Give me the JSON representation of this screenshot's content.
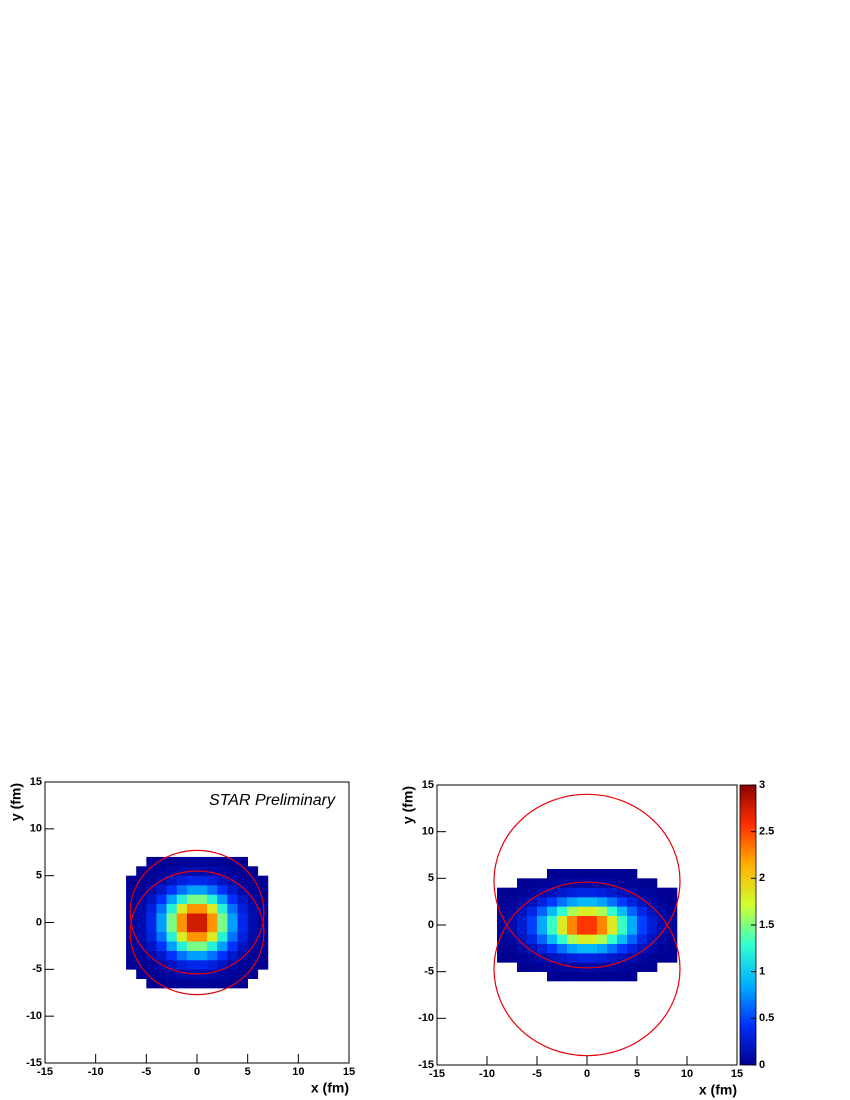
{
  "chart_data": [
    {
      "type": "heatmap",
      "annotation": "STAR Preliminary",
      "x_label": "x (fm)",
      "y_label": "y (fm)",
      "xlim": [
        -15,
        15
      ],
      "ylim": [
        -15,
        15
      ],
      "xticks": [
        -15,
        -10,
        -5,
        0,
        5,
        10,
        15
      ],
      "yticks": [
        -15,
        -10,
        -5,
        0,
        5,
        10,
        15
      ],
      "zlim": [
        0,
        3
      ],
      "colormap": [
        "#00008f",
        "#0030ff",
        "#00b0ff",
        "#30ffd0",
        "#d0ff30",
        "#ffb000",
        "#ff3000",
        "#8f0000"
      ],
      "x_bins": [
        -7,
        -6,
        -5,
        -4,
        -3,
        -2,
        -1,
        0,
        1,
        2,
        3,
        4,
        5,
        6,
        7
      ],
      "y_bins": [
        -7,
        -6,
        -5,
        -4,
        -3,
        -2,
        -1,
        0,
        1,
        2,
        3,
        4,
        5,
        6,
        7
      ],
      "z": [
        [
          0,
          0,
          0.01,
          0.01,
          0.02,
          0.03,
          0.04,
          0.04,
          0.03,
          0.02,
          0.01,
          0.01,
          0,
          0
        ],
        [
          0,
          0.01,
          0.02,
          0.04,
          0.07,
          0.1,
          0.12,
          0.12,
          0.1,
          0.07,
          0.04,
          0.02,
          0.01,
          0
        ],
        [
          0.01,
          0.02,
          0.04,
          0.1,
          0.19,
          0.29,
          0.35,
          0.35,
          0.29,
          0.19,
          0.1,
          0.04,
          0.02,
          0.01
        ],
        [
          0.01,
          0.04,
          0.1,
          0.23,
          0.43,
          0.65,
          0.8,
          0.8,
          0.65,
          0.43,
          0.23,
          0.1,
          0.04,
          0.01
        ],
        [
          0.02,
          0.07,
          0.19,
          0.43,
          0.8,
          1.21,
          1.48,
          1.48,
          1.21,
          0.8,
          0.43,
          0.19,
          0.07,
          0.02
        ],
        [
          0.03,
          0.1,
          0.29,
          0.65,
          1.21,
          1.82,
          2.24,
          2.24,
          1.82,
          1.21,
          0.65,
          0.29,
          0.1,
          0.03
        ],
        [
          0.04,
          0.12,
          0.35,
          0.8,
          1.48,
          2.24,
          2.75,
          2.75,
          2.24,
          1.48,
          0.8,
          0.35,
          0.12,
          0.04
        ],
        [
          0.04,
          0.12,
          0.35,
          0.8,
          1.48,
          2.24,
          2.75,
          2.75,
          2.24,
          1.48,
          0.8,
          0.35,
          0.12,
          0.04
        ],
        [
          0.03,
          0.1,
          0.29,
          0.65,
          1.21,
          1.82,
          2.24,
          2.24,
          1.82,
          1.21,
          0.65,
          0.29,
          0.1,
          0.03
        ],
        [
          0.02,
          0.07,
          0.19,
          0.43,
          0.8,
          1.21,
          1.48,
          1.48,
          1.21,
          0.8,
          0.43,
          0.19,
          0.07,
          0.02
        ],
        [
          0.01,
          0.04,
          0.1,
          0.23,
          0.43,
          0.65,
          0.8,
          0.8,
          0.65,
          0.43,
          0.23,
          0.1,
          0.04,
          0.01
        ],
        [
          0.01,
          0.02,
          0.04,
          0.1,
          0.19,
          0.29,
          0.35,
          0.35,
          0.29,
          0.19,
          0.1,
          0.04,
          0.02,
          0.01
        ],
        [
          0,
          0.01,
          0.02,
          0.04,
          0.07,
          0.1,
          0.12,
          0.12,
          0.1,
          0.07,
          0.04,
          0.02,
          0.01,
          0
        ],
        [
          0,
          0,
          0.01,
          0.01,
          0.02,
          0.03,
          0.04,
          0.04,
          0.03,
          0.02,
          0.01,
          0.01,
          0,
          0
        ]
      ],
      "circles": [
        {
          "cx": 0,
          "cy": 1.1,
          "r": 6.6
        },
        {
          "cx": 0,
          "cy": -1.1,
          "r": 6.6
        }
      ],
      "circle_color": "#e8000b"
    },
    {
      "type": "heatmap",
      "x_label": "x (fm)",
      "y_label": "y (fm)",
      "xlim": [
        -15,
        15
      ],
      "ylim": [
        -15,
        15
      ],
      "xticks": [
        -15,
        -10,
        -5,
        0,
        5,
        10,
        15
      ],
      "yticks": [
        -15,
        -10,
        -5,
        0,
        5,
        10,
        15
      ],
      "zlim": [
        0,
        3
      ],
      "zticks": [
        0,
        0.5,
        1,
        1.5,
        2,
        2.5,
        3
      ],
      "colormap": [
        "#00008f",
        "#0030ff",
        "#00b0ff",
        "#30ffd0",
        "#d0ff30",
        "#ffb000",
        "#ff3000",
        "#8f0000"
      ],
      "x_bins": [
        -9,
        -8,
        -7,
        -6,
        -5,
        -4,
        -3,
        -2,
        -1,
        0,
        1,
        2,
        3,
        4,
        5,
        6,
        7,
        8,
        9
      ],
      "y_bins": [
        -7,
        -6,
        -5,
        -4,
        -3,
        -2,
        -1,
        0,
        1,
        2,
        3,
        4,
        5,
        6,
        7
      ],
      "z": [
        [
          0,
          0,
          0,
          0,
          0,
          0,
          0,
          0,
          0,
          0,
          0,
          0,
          0,
          0,
          0,
          0,
          0,
          0
        ],
        [
          0,
          0,
          0,
          0,
          0,
          0.01,
          0.01,
          0.01,
          0.01,
          0.01,
          0.01,
          0.01,
          0.01,
          0.01,
          0,
          0,
          0,
          0
        ],
        [
          0,
          0,
          0.01,
          0.02,
          0.03,
          0.04,
          0.06,
          0.07,
          0.08,
          0.08,
          0.07,
          0.06,
          0.04,
          0.03,
          0.02,
          0.01,
          0,
          0
        ],
        [
          0.01,
          0.01,
          0.03,
          0.06,
          0.11,
          0.16,
          0.23,
          0.29,
          0.32,
          0.32,
          0.29,
          0.23,
          0.16,
          0.11,
          0.06,
          0.03,
          0.01,
          0.01
        ],
        [
          0.02,
          0.04,
          0.09,
          0.17,
          0.3,
          0.46,
          0.65,
          0.81,
          0.9,
          0.9,
          0.81,
          0.65,
          0.46,
          0.3,
          0.17,
          0.09,
          0.04,
          0.02
        ],
        [
          0.03,
          0.08,
          0.18,
          0.34,
          0.6,
          0.93,
          1.29,
          1.61,
          1.8,
          1.8,
          1.61,
          1.29,
          0.93,
          0.6,
          0.34,
          0.18,
          0.08,
          0.03
        ],
        [
          0.05,
          0.11,
          0.25,
          0.48,
          0.84,
          1.31,
          1.83,
          2.28,
          2.55,
          2.55,
          2.28,
          1.83,
          1.31,
          0.84,
          0.48,
          0.25,
          0.11,
          0.05
        ],
        [
          0.05,
          0.11,
          0.25,
          0.48,
          0.84,
          1.31,
          1.83,
          2.28,
          2.55,
          2.55,
          2.28,
          1.83,
          1.31,
          0.84,
          0.48,
          0.25,
          0.11,
          0.05
        ],
        [
          0.03,
          0.08,
          0.18,
          0.34,
          0.6,
          0.93,
          1.29,
          1.61,
          1.8,
          1.8,
          1.61,
          1.29,
          0.93,
          0.6,
          0.34,
          0.18,
          0.08,
          0.03
        ],
        [
          0.02,
          0.04,
          0.09,
          0.17,
          0.3,
          0.46,
          0.65,
          0.81,
          0.9,
          0.9,
          0.81,
          0.65,
          0.46,
          0.3,
          0.17,
          0.09,
          0.04,
          0.02
        ],
        [
          0.01,
          0.01,
          0.03,
          0.06,
          0.11,
          0.16,
          0.23,
          0.29,
          0.32,
          0.32,
          0.29,
          0.23,
          0.16,
          0.11,
          0.06,
          0.03,
          0.01,
          0.01
        ],
        [
          0,
          0,
          0.01,
          0.02,
          0.03,
          0.04,
          0.06,
          0.07,
          0.08,
          0.08,
          0.07,
          0.06,
          0.04,
          0.03,
          0.02,
          0.01,
          0,
          0
        ],
        [
          0,
          0,
          0,
          0,
          0,
          0.01,
          0.01,
          0.01,
          0.01,
          0.01,
          0.01,
          0.01,
          0.01,
          0.01,
          0,
          0,
          0,
          0
        ],
        [
          0,
          0,
          0,
          0,
          0,
          0,
          0,
          0,
          0,
          0,
          0,
          0,
          0,
          0,
          0,
          0,
          0,
          0
        ]
      ],
      "circles": [
        {
          "cx": 0,
          "cy": 4.7,
          "r": 9.3
        },
        {
          "cx": 0,
          "cy": -4.7,
          "r": 9.3
        }
      ],
      "circle_color": "#e8000b"
    }
  ]
}
